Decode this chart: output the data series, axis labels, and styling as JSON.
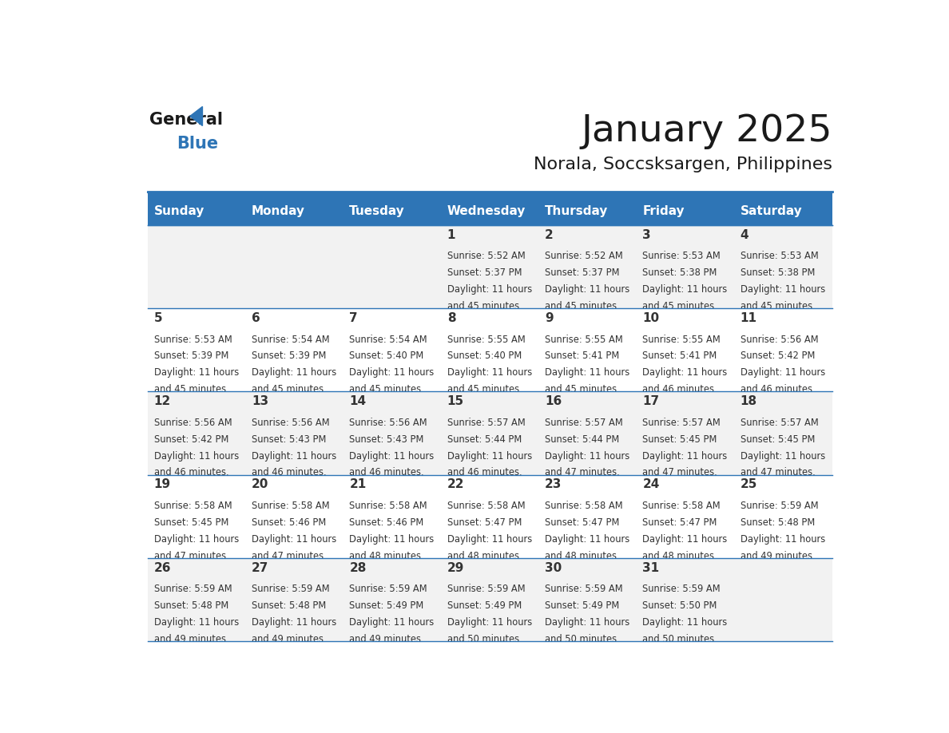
{
  "title": "January 2025",
  "subtitle": "Norala, Soccsksargen, Philippines",
  "header_bg": "#2E75B6",
  "header_text_color": "#FFFFFF",
  "cell_bg_odd": "#F2F2F2",
  "cell_bg_even": "#FFFFFF",
  "border_color": "#2E75B6",
  "text_color": "#333333",
  "days_of_week": [
    "Sunday",
    "Monday",
    "Tuesday",
    "Wednesday",
    "Thursday",
    "Friday",
    "Saturday"
  ],
  "calendar_data": [
    [
      {
        "day": "",
        "sunrise": "",
        "sunset": "",
        "daylight": ""
      },
      {
        "day": "",
        "sunrise": "",
        "sunset": "",
        "daylight": ""
      },
      {
        "day": "",
        "sunrise": "",
        "sunset": "",
        "daylight": ""
      },
      {
        "day": "1",
        "sunrise": "5:52 AM",
        "sunset": "5:37 PM",
        "daylight": "11 hours and 45 minutes."
      },
      {
        "day": "2",
        "sunrise": "5:52 AM",
        "sunset": "5:37 PM",
        "daylight": "11 hours and 45 minutes."
      },
      {
        "day": "3",
        "sunrise": "5:53 AM",
        "sunset": "5:38 PM",
        "daylight": "11 hours and 45 minutes."
      },
      {
        "day": "4",
        "sunrise": "5:53 AM",
        "sunset": "5:38 PM",
        "daylight": "11 hours and 45 minutes."
      }
    ],
    [
      {
        "day": "5",
        "sunrise": "5:53 AM",
        "sunset": "5:39 PM",
        "daylight": "11 hours and 45 minutes."
      },
      {
        "day": "6",
        "sunrise": "5:54 AM",
        "sunset": "5:39 PM",
        "daylight": "11 hours and 45 minutes."
      },
      {
        "day": "7",
        "sunrise": "5:54 AM",
        "sunset": "5:40 PM",
        "daylight": "11 hours and 45 minutes."
      },
      {
        "day": "8",
        "sunrise": "5:55 AM",
        "sunset": "5:40 PM",
        "daylight": "11 hours and 45 minutes."
      },
      {
        "day": "9",
        "sunrise": "5:55 AM",
        "sunset": "5:41 PM",
        "daylight": "11 hours and 45 minutes."
      },
      {
        "day": "10",
        "sunrise": "5:55 AM",
        "sunset": "5:41 PM",
        "daylight": "11 hours and 46 minutes."
      },
      {
        "day": "11",
        "sunrise": "5:56 AM",
        "sunset": "5:42 PM",
        "daylight": "11 hours and 46 minutes."
      }
    ],
    [
      {
        "day": "12",
        "sunrise": "5:56 AM",
        "sunset": "5:42 PM",
        "daylight": "11 hours and 46 minutes."
      },
      {
        "day": "13",
        "sunrise": "5:56 AM",
        "sunset": "5:43 PM",
        "daylight": "11 hours and 46 minutes."
      },
      {
        "day": "14",
        "sunrise": "5:56 AM",
        "sunset": "5:43 PM",
        "daylight": "11 hours and 46 minutes."
      },
      {
        "day": "15",
        "sunrise": "5:57 AM",
        "sunset": "5:44 PM",
        "daylight": "11 hours and 46 minutes."
      },
      {
        "day": "16",
        "sunrise": "5:57 AM",
        "sunset": "5:44 PM",
        "daylight": "11 hours and 47 minutes."
      },
      {
        "day": "17",
        "sunrise": "5:57 AM",
        "sunset": "5:45 PM",
        "daylight": "11 hours and 47 minutes."
      },
      {
        "day": "18",
        "sunrise": "5:57 AM",
        "sunset": "5:45 PM",
        "daylight": "11 hours and 47 minutes."
      }
    ],
    [
      {
        "day": "19",
        "sunrise": "5:58 AM",
        "sunset": "5:45 PM",
        "daylight": "11 hours and 47 minutes."
      },
      {
        "day": "20",
        "sunrise": "5:58 AM",
        "sunset": "5:46 PM",
        "daylight": "11 hours and 47 minutes."
      },
      {
        "day": "21",
        "sunrise": "5:58 AM",
        "sunset": "5:46 PM",
        "daylight": "11 hours and 48 minutes."
      },
      {
        "day": "22",
        "sunrise": "5:58 AM",
        "sunset": "5:47 PM",
        "daylight": "11 hours and 48 minutes."
      },
      {
        "day": "23",
        "sunrise": "5:58 AM",
        "sunset": "5:47 PM",
        "daylight": "11 hours and 48 minutes."
      },
      {
        "day": "24",
        "sunrise": "5:58 AM",
        "sunset": "5:47 PM",
        "daylight": "11 hours and 48 minutes."
      },
      {
        "day": "25",
        "sunrise": "5:59 AM",
        "sunset": "5:48 PM",
        "daylight": "11 hours and 49 minutes."
      }
    ],
    [
      {
        "day": "26",
        "sunrise": "5:59 AM",
        "sunset": "5:48 PM",
        "daylight": "11 hours and 49 minutes."
      },
      {
        "day": "27",
        "sunrise": "5:59 AM",
        "sunset": "5:48 PM",
        "daylight": "11 hours and 49 minutes."
      },
      {
        "day": "28",
        "sunrise": "5:59 AM",
        "sunset": "5:49 PM",
        "daylight": "11 hours and 49 minutes."
      },
      {
        "day": "29",
        "sunrise": "5:59 AM",
        "sunset": "5:49 PM",
        "daylight": "11 hours and 50 minutes."
      },
      {
        "day": "30",
        "sunrise": "5:59 AM",
        "sunset": "5:49 PM",
        "daylight": "11 hours and 50 minutes."
      },
      {
        "day": "31",
        "sunrise": "5:59 AM",
        "sunset": "5:50 PM",
        "daylight": "11 hours and 50 minutes."
      },
      {
        "day": "",
        "sunrise": "",
        "sunset": "",
        "daylight": ""
      }
    ]
  ]
}
